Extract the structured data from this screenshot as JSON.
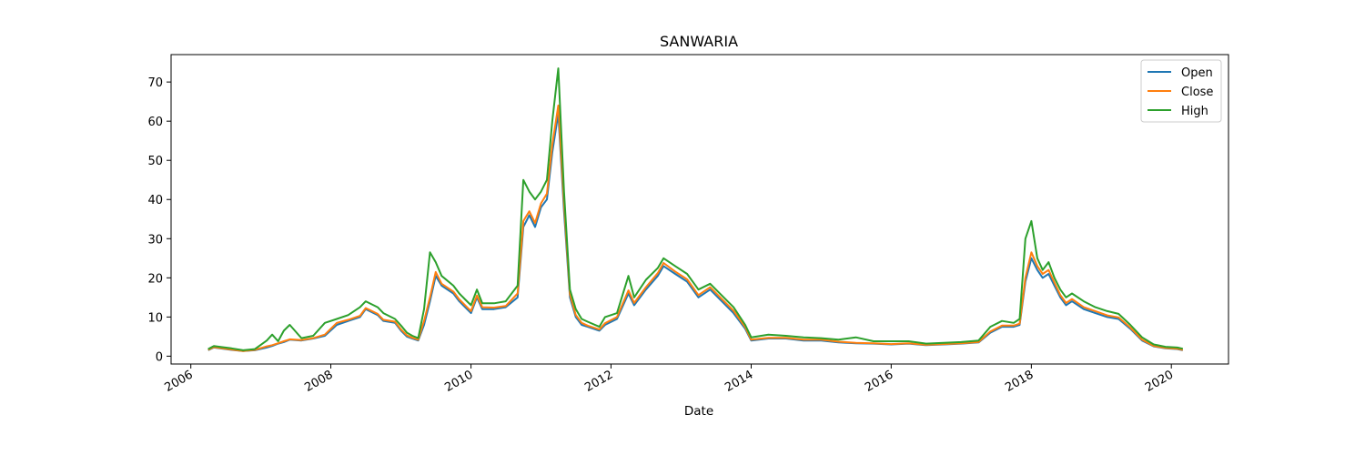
{
  "chart_data": {
    "type": "line",
    "title": "SANWARIA",
    "xlabel": "Date",
    "ylabel": "",
    "x_axis": "date",
    "xlim": [
      "2005-09-20",
      "2020-10-25"
    ],
    "ylim": [
      -2.0,
      77.0
    ],
    "x_ticks": [
      "2006",
      "2008",
      "2010",
      "2012",
      "2014",
      "2016",
      "2018",
      "2020"
    ],
    "y_ticks": [
      0,
      10,
      20,
      30,
      40,
      50,
      60,
      70
    ],
    "grid": false,
    "legend": "top-right",
    "series": [
      {
        "name": "Open",
        "color": "#1f77b4"
      },
      {
        "name": "Close",
        "color": "#ff7f0e"
      },
      {
        "name": "High",
        "color": "#2ca02c"
      }
    ],
    "x": [
      "2006-04-01",
      "2006-05-01",
      "2006-06-01",
      "2006-08-01",
      "2006-10-01",
      "2006-12-01",
      "2007-02-01",
      "2007-03-01",
      "2007-04-01",
      "2007-05-01",
      "2007-06-01",
      "2007-08-01",
      "2007-10-01",
      "2007-12-01",
      "2008-02-01",
      "2008-04-01",
      "2008-06-01",
      "2008-07-01",
      "2008-09-01",
      "2008-10-01",
      "2008-12-01",
      "2009-01-01",
      "2009-02-01",
      "2009-03-01",
      "2009-04-01",
      "2009-05-01",
      "2009-06-01",
      "2009-07-01",
      "2009-08-01",
      "2009-10-01",
      "2009-11-01",
      "2009-12-01",
      "2010-01-01",
      "2010-02-01",
      "2010-03-01",
      "2010-05-01",
      "2010-07-01",
      "2010-09-01",
      "2010-10-01",
      "2010-11-01",
      "2010-12-01",
      "2011-01-01",
      "2011-02-01",
      "2011-03-01",
      "2011-04-01",
      "2011-05-01",
      "2011-06-01",
      "2011-07-01",
      "2011-08-01",
      "2011-09-01",
      "2011-11-01",
      "2011-12-01",
      "2012-02-01",
      "2012-04-01",
      "2012-05-01",
      "2012-07-01",
      "2012-09-01",
      "2012-10-01",
      "2012-12-01",
      "2013-02-01",
      "2013-04-01",
      "2013-06-01",
      "2013-08-01",
      "2013-10-01",
      "2013-12-01",
      "2014-01-01",
      "2014-04-01",
      "2014-07-01",
      "2014-10-01",
      "2015-01-01",
      "2015-04-01",
      "2015-07-01",
      "2015-10-01",
      "2016-01-01",
      "2016-04-01",
      "2016-07-01",
      "2016-10-01",
      "2017-01-01",
      "2017-04-01",
      "2017-06-01",
      "2017-08-01",
      "2017-10-01",
      "2017-11-01",
      "2017-12-01",
      "2018-01-01",
      "2018-02-01",
      "2018-03-01",
      "2018-04-01",
      "2018-05-01",
      "2018-06-01",
      "2018-07-01",
      "2018-08-01",
      "2018-10-01",
      "2018-12-01",
      "2019-02-01",
      "2019-04-01",
      "2019-06-01",
      "2019-08-01",
      "2019-10-01",
      "2019-12-01",
      "2020-02-01",
      "2020-03-01"
    ],
    "values": {
      "Open": [
        1.5,
        2.2,
        2.0,
        1.6,
        1.3,
        1.5,
        2.2,
        2.6,
        3.2,
        3.6,
        4.2,
        4.0,
        4.5,
        5.2,
        8.0,
        9.0,
        10.0,
        12.0,
        10.5,
        9.0,
        8.5,
        6.5,
        5.0,
        4.5,
        4.0,
        8.0,
        14.0,
        20.5,
        18.0,
        16.0,
        14.0,
        12.5,
        11.0,
        15.0,
        12.0,
        12.0,
        12.5,
        15.0,
        33.0,
        36.0,
        33.0,
        38.0,
        40.0,
        52.0,
        62.0,
        37.0,
        15.0,
        10.0,
        8.0,
        7.5,
        6.5,
        8.0,
        9.5,
        16.0,
        13.0,
        17.0,
        20.5,
        23.0,
        21.0,
        19.0,
        15.0,
        17.0,
        14.0,
        11.0,
        7.0,
        4.0,
        4.5,
        4.5,
        4.0,
        4.0,
        3.5,
        3.3,
        3.2,
        3.0,
        3.2,
        2.8,
        3.0,
        3.2,
        3.5,
        6.0,
        7.5,
        7.5,
        8.0,
        19.0,
        25.0,
        22.0,
        20.0,
        21.0,
        18.0,
        15.0,
        13.0,
        14.0,
        12.0,
        11.0,
        10.0,
        9.5,
        7.0,
        4.0,
        2.5,
        2.0,
        1.8,
        1.5
      ],
      "Close": [
        1.6,
        2.3,
        2.1,
        1.7,
        1.3,
        1.6,
        2.5,
        2.8,
        3.3,
        3.8,
        4.3,
        4.1,
        4.6,
        5.5,
        8.5,
        9.3,
        10.3,
        12.3,
        10.8,
        9.3,
        8.8,
        6.8,
        5.3,
        4.7,
        4.2,
        9.0,
        15.0,
        21.5,
        18.5,
        16.5,
        14.5,
        13.0,
        11.5,
        15.5,
        12.5,
        12.4,
        12.8,
        16.0,
        34.5,
        37.0,
        34.0,
        39.0,
        41.5,
        54.0,
        64.0,
        39.0,
        15.8,
        10.5,
        8.5,
        7.8,
        6.8,
        8.4,
        10.0,
        16.8,
        13.6,
        17.6,
        21.2,
        23.8,
        21.6,
        19.6,
        15.6,
        17.6,
        14.6,
        11.6,
        7.4,
        4.2,
        4.7,
        4.7,
        4.2,
        4.2,
        3.7,
        3.4,
        3.3,
        3.1,
        3.3,
        2.9,
        3.1,
        3.3,
        3.6,
        6.3,
        7.8,
        7.8,
        8.3,
        20.0,
        26.5,
        23.0,
        21.0,
        22.0,
        18.8,
        15.6,
        13.6,
        14.6,
        12.5,
        11.5,
        10.4,
        9.9,
        7.3,
        4.2,
        2.6,
        2.1,
        1.9,
        1.6
      ],
      "High": [
        1.8,
        2.6,
        2.4,
        2.0,
        1.5,
        1.8,
        4.0,
        5.5,
        3.8,
        6.5,
        8.0,
        4.6,
        5.2,
        8.5,
        9.5,
        10.5,
        12.5,
        14.0,
        12.5,
        11.0,
        9.5,
        7.8,
        6.0,
        5.2,
        4.6,
        12.0,
        26.5,
        24.0,
        20.5,
        18.0,
        16.0,
        14.5,
        13.0,
        17.0,
        13.5,
        13.5,
        14.0,
        18.0,
        45.0,
        42.0,
        40.0,
        42.0,
        45.0,
        60.0,
        73.5,
        42.0,
        17.0,
        12.0,
        9.5,
        8.8,
        7.5,
        10.0,
        11.0,
        20.5,
        15.0,
        19.5,
        22.5,
        25.0,
        23.0,
        21.0,
        17.0,
        18.5,
        15.5,
        12.5,
        8.0,
        4.8,
        5.5,
        5.2,
        4.8,
        4.6,
        4.2,
        4.8,
        3.8,
        3.8,
        3.8,
        3.2,
        3.4,
        3.6,
        4.0,
        7.5,
        9.0,
        8.5,
        9.5,
        30.0,
        34.5,
        25.0,
        22.0,
        24.0,
        20.0,
        17.0,
        15.0,
        16.0,
        14.0,
        12.5,
        11.5,
        10.8,
        8.0,
        4.8,
        3.0,
        2.4,
        2.2,
        1.9
      ]
    }
  }
}
